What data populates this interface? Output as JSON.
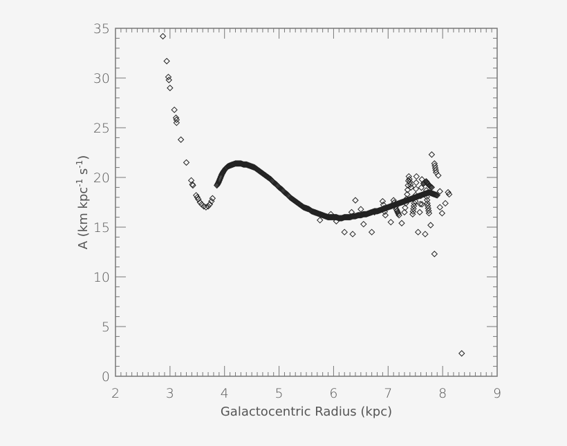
{
  "chart_data": {
    "type": "scatter",
    "title": "",
    "xlabel": "Galactocentric Radius (kpc)",
    "ylabel": "A (km kpc⁻¹ s⁻¹)",
    "ylabel_parts": {
      "main": "A (km kpc",
      "sup1": "-1",
      "mid": " s",
      "sup2": "-1",
      "end": ")"
    },
    "xlim": [
      2,
      9
    ],
    "ylim": [
      0,
      35
    ],
    "xticks": [
      2,
      3,
      4,
      5,
      6,
      7,
      8,
      9
    ],
    "yticks": [
      0,
      5,
      10,
      15,
      20,
      25,
      30,
      35
    ],
    "grid": false,
    "legend": null,
    "marker": "diamond",
    "colors": {
      "background": "#f5f5f5",
      "axis": "#777777",
      "marker": "#222222",
      "text": "#555555"
    },
    "series": [
      {
        "name": "A",
        "points": [
          [
            2.87,
            34.2
          ],
          [
            2.94,
            31.7
          ],
          [
            2.97,
            30.1
          ],
          [
            2.98,
            29.8
          ],
          [
            3.0,
            29.0
          ],
          [
            3.08,
            26.8
          ],
          [
            3.11,
            26.0
          ],
          [
            3.12,
            25.8
          ],
          [
            3.12,
            25.5
          ],
          [
            3.2,
            23.8
          ],
          [
            3.3,
            21.5
          ],
          [
            3.39,
            19.7
          ],
          [
            3.41,
            19.3
          ],
          [
            3.42,
            19.2
          ],
          [
            3.48,
            18.2
          ],
          [
            3.5,
            18.0
          ],
          [
            3.52,
            17.8
          ],
          [
            3.55,
            17.5
          ],
          [
            3.58,
            17.3
          ],
          [
            3.62,
            17.1
          ],
          [
            3.66,
            17.0
          ],
          [
            3.7,
            17.1
          ],
          [
            3.73,
            17.3
          ],
          [
            3.76,
            17.6
          ],
          [
            3.78,
            17.9
          ],
          [
            3.86,
            19.2
          ],
          [
            3.89,
            19.5
          ],
          [
            3.92,
            19.9
          ],
          [
            3.95,
            20.3
          ],
          [
            3.98,
            20.6
          ],
          [
            4.02,
            20.9
          ],
          [
            4.06,
            21.1
          ],
          [
            4.1,
            21.2
          ],
          [
            4.15,
            21.3
          ],
          [
            4.2,
            21.4
          ],
          [
            4.25,
            21.4
          ],
          [
            4.3,
            21.4
          ],
          [
            4.35,
            21.3
          ],
          [
            4.4,
            21.3
          ],
          [
            4.45,
            21.2
          ],
          [
            4.5,
            21.1
          ],
          [
            4.55,
            21.0
          ],
          [
            4.6,
            20.8
          ],
          [
            4.65,
            20.6
          ],
          [
            4.7,
            20.4
          ],
          [
            4.75,
            20.2
          ],
          [
            4.8,
            20.0
          ],
          [
            4.85,
            19.8
          ],
          [
            4.9,
            19.5
          ],
          [
            4.95,
            19.3
          ],
          [
            5.0,
            19.0
          ],
          [
            5.05,
            18.8
          ],
          [
            5.1,
            18.5
          ],
          [
            5.15,
            18.3
          ],
          [
            5.2,
            18.0
          ],
          [
            5.25,
            17.8
          ],
          [
            5.3,
            17.6
          ],
          [
            5.35,
            17.4
          ],
          [
            5.4,
            17.2
          ],
          [
            5.45,
            17.0
          ],
          [
            5.5,
            16.9
          ],
          [
            5.55,
            16.8
          ],
          [
            5.6,
            16.6
          ],
          [
            5.65,
            16.5
          ],
          [
            5.7,
            16.4
          ],
          [
            5.75,
            16.3
          ],
          [
            5.8,
            16.2
          ],
          [
            5.85,
            16.1
          ],
          [
            5.9,
            16.0
          ],
          [
            5.95,
            16.0
          ],
          [
            6.0,
            16.0
          ],
          [
            6.05,
            16.0
          ],
          [
            6.1,
            15.9
          ],
          [
            6.15,
            15.9
          ],
          [
            6.2,
            16.0
          ],
          [
            6.25,
            16.0
          ],
          [
            6.3,
            16.0
          ],
          [
            6.35,
            16.1
          ],
          [
            6.4,
            16.1
          ],
          [
            6.45,
            16.2
          ],
          [
            6.5,
            16.2
          ],
          [
            6.55,
            16.3
          ],
          [
            6.6,
            16.3
          ],
          [
            6.65,
            16.4
          ],
          [
            6.7,
            16.5
          ],
          [
            6.75,
            16.6
          ],
          [
            6.8,
            16.6
          ],
          [
            6.85,
            16.7
          ],
          [
            6.9,
            16.8
          ],
          [
            6.95,
            16.9
          ],
          [
            7.0,
            17.0
          ],
          [
            7.05,
            17.1
          ],
          [
            7.1,
            17.2
          ],
          [
            7.15,
            17.3
          ],
          [
            7.2,
            17.4
          ],
          [
            7.25,
            17.5
          ],
          [
            7.3,
            17.6
          ],
          [
            7.35,
            17.7
          ],
          [
            7.4,
            17.8
          ],
          [
            7.45,
            17.9
          ],
          [
            7.5,
            18.0
          ],
          [
            7.55,
            18.1
          ],
          [
            7.6,
            18.2
          ],
          [
            7.65,
            18.3
          ],
          [
            7.7,
            18.4
          ],
          [
            7.75,
            18.5
          ],
          [
            7.8,
            18.4
          ],
          [
            7.85,
            18.3
          ],
          [
            7.9,
            18.2
          ],
          [
            5.75,
            15.7
          ],
          [
            5.95,
            16.3
          ],
          [
            6.05,
            15.6
          ],
          [
            6.2,
            14.5
          ],
          [
            6.33,
            16.5
          ],
          [
            6.35,
            14.3
          ],
          [
            6.4,
            17.7
          ],
          [
            6.5,
            16.8
          ],
          [
            6.55,
            15.3
          ],
          [
            6.7,
            14.5
          ],
          [
            6.75,
            16.5
          ],
          [
            6.9,
            17.6
          ],
          [
            6.95,
            16.2
          ],
          [
            7.05,
            15.5
          ],
          [
            7.1,
            17.7
          ],
          [
            7.15,
            16.8
          ],
          [
            7.2,
            16.2
          ],
          [
            7.25,
            15.4
          ],
          [
            7.3,
            16.5
          ],
          [
            7.35,
            18.3
          ],
          [
            7.38,
            20.1
          ],
          [
            7.42,
            19.0
          ],
          [
            7.5,
            17.6
          ],
          [
            7.52,
            20.1
          ],
          [
            7.58,
            16.5
          ],
          [
            7.62,
            19.8
          ],
          [
            7.7,
            18.7
          ],
          [
            7.72,
            17.4
          ],
          [
            7.75,
            16.4
          ],
          [
            7.78,
            15.2
          ],
          [
            7.55,
            14.5
          ],
          [
            7.8,
            22.3
          ],
          [
            7.85,
            21.4
          ],
          [
            7.88,
            20.5
          ],
          [
            7.92,
            20.2
          ],
          [
            7.95,
            18.6
          ],
          [
            7.95,
            17.0
          ],
          [
            7.99,
            16.4
          ],
          [
            8.05,
            17.4
          ],
          [
            8.1,
            18.5
          ],
          [
            8.12,
            18.3
          ],
          [
            7.68,
            14.3
          ],
          [
            7.85,
            12.3
          ],
          [
            7.65,
            19.4
          ],
          [
            7.7,
            19.6
          ],
          [
            7.75,
            19.2
          ],
          [
            7.8,
            19.0
          ],
          [
            7.62,
            17.3
          ],
          [
            7.48,
            17.4
          ],
          [
            7.45,
            16.3
          ],
          [
            8.35,
            2.3
          ]
        ]
      }
    ]
  }
}
